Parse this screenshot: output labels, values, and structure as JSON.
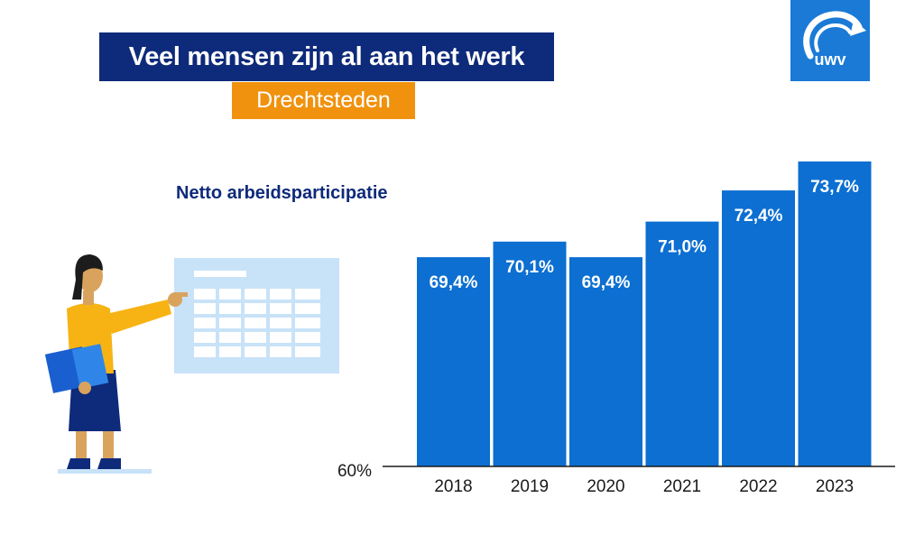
{
  "header": {
    "title": "Veel mensen zijn al aan het werk",
    "subtitle": "Drechtsteden"
  },
  "logo": {
    "text": "UWV",
    "icon": "uwv-logo-icon"
  },
  "colors": {
    "navy": "#0e2a7a",
    "orange": "#f0920e",
    "bar_blue": "#0c6fd1",
    "logo_blue": "#1a7ad6"
  },
  "chart_data": {
    "type": "bar",
    "title": "Netto arbeidsparticipatie",
    "categories": [
      "2018",
      "2019",
      "2020",
      "2021",
      "2022",
      "2023"
    ],
    "values": [
      69.4,
      70.1,
      69.4,
      71.0,
      72.4,
      73.7
    ],
    "value_labels": [
      "69,4%",
      "70,1%",
      "69,4%",
      "71,0%",
      "72,4%",
      "73,7%"
    ],
    "y_baseline_label": "60%",
    "ylim": [
      60,
      73.7
    ],
    "grid": false,
    "legend": "none"
  }
}
